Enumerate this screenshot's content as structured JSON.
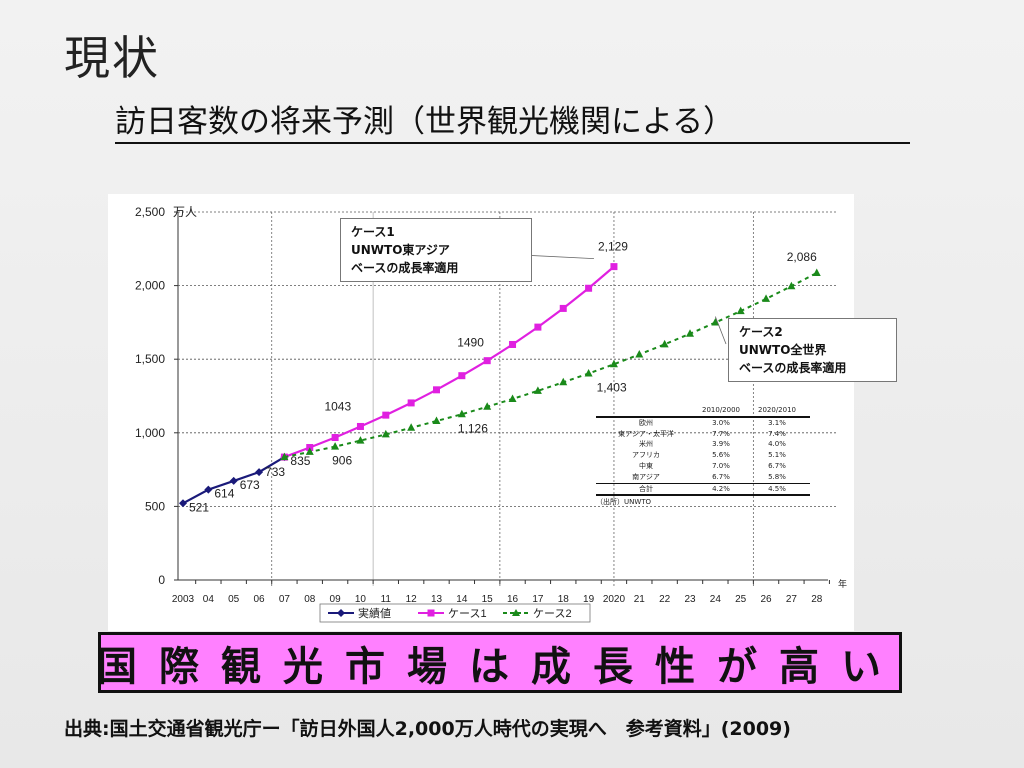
{
  "slide": {
    "heading": "現状",
    "subtitle": "訪日客数の将来予測（世界観光機関による）",
    "banner": "国際観光市場は成長性が高い",
    "source": "出典:国土交通省観光庁ー「訪日外国人2,000万人時代の実現へ　参考資料」(2009)"
  },
  "colors": {
    "actual": "#1a1a7a",
    "case1": "#e020e0",
    "case2": "#1a8a1a",
    "banner_bg": "#ff80ff"
  },
  "callouts": {
    "case1": [
      "ケース1",
      "UNWTO東アジア",
      "ベースの成長率適用"
    ],
    "case2": [
      "ケース2",
      "UNWTO全世界",
      "ベースの成長率適用"
    ]
  },
  "growth_table": {
    "header": [
      "",
      "2010/2000",
      "2020/2010"
    ],
    "rows": [
      [
        "欧州",
        "3.0%",
        "3.1%"
      ],
      [
        "東アジア・太平洋",
        "7.7%",
        "7.4%"
      ],
      [
        "米州",
        "3.9%",
        "4.0%"
      ],
      [
        "アフリカ",
        "5.6%",
        "5.1%"
      ],
      [
        "中東",
        "7.0%",
        "6.7%"
      ],
      [
        "南アジア",
        "6.7%",
        "5.8%"
      ]
    ],
    "total": [
      "合計",
      "4.2%",
      "4.5%"
    ],
    "source": "（出所）UNWTO"
  },
  "chart_data": {
    "type": "line",
    "title": "",
    "ylabel": "万人",
    "xlabel": "年",
    "ylim": [
      0,
      2500
    ],
    "yticks": [
      "0",
      "500",
      "1,000",
      "1,500",
      "2,000",
      "2,500"
    ],
    "categories": [
      "2003",
      "04",
      "05",
      "06",
      "07",
      "08",
      "09",
      "10",
      "11",
      "12",
      "13",
      "14",
      "15",
      "16",
      "17",
      "18",
      "19",
      "2020",
      "21",
      "22",
      "23",
      "24",
      "25",
      "26",
      "27",
      "28"
    ],
    "legend_position": "bottom",
    "grid": "dotted horizontal at y ticks; vertical guides at 06/07, 10/11, 15/16, 2020, 25",
    "series": [
      {
        "name": "実績値",
        "color": "#1a1a7a",
        "marker": "diamond",
        "values": [
          521,
          614,
          673,
          733,
          835,
          null,
          null,
          null,
          null,
          null,
          null,
          null,
          null,
          null,
          null,
          null,
          null,
          null,
          null,
          null,
          null,
          null,
          null,
          null,
          null,
          null
        ]
      },
      {
        "name": "ケース1",
        "color": "#e020e0",
        "marker": "square",
        "values": [
          null,
          null,
          null,
          null,
          835,
          900,
          968,
          1043,
          1120,
          1203,
          1292,
          1388,
          1490,
          1600,
          1718,
          1845,
          1982,
          2129,
          null,
          null,
          null,
          null,
          null,
          null,
          null,
          null
        ]
      },
      {
        "name": "ケース2",
        "color": "#1a8a1a",
        "marker": "triangle",
        "values": [
          null,
          null,
          null,
          null,
          835,
          870,
          906,
          947,
          989,
          1034,
          1080,
          1126,
          1177,
          1230,
          1285,
          1343,
          1403,
          1466,
          1532,
          1601,
          1673,
          1749,
          1827,
          1910,
          1996,
          2086
        ]
      }
    ],
    "data_labels": [
      {
        "series": "実績値",
        "x": "2003",
        "value": 521,
        "text": "521"
      },
      {
        "series": "実績値",
        "x": "04",
        "value": 614,
        "text": "614"
      },
      {
        "series": "実績値",
        "x": "05",
        "value": 673,
        "text": "673"
      },
      {
        "series": "実績値",
        "x": "06",
        "value": 733,
        "text": "733"
      },
      {
        "series": "実績値",
        "x": "07",
        "value": 835,
        "text": "835"
      },
      {
        "series": "ケース2",
        "x": "09",
        "value": 906,
        "text": "906"
      },
      {
        "series": "ケース1",
        "x": "10",
        "value": 1043,
        "text": "1043"
      },
      {
        "series": "ケース2",
        "x": "14",
        "value": 1126,
        "text": "1,126"
      },
      {
        "series": "ケース1",
        "x": "15",
        "value": 1490,
        "text": "1490"
      },
      {
        "series": "ケース2",
        "x": "19",
        "value": 1403,
        "text": "1,403"
      },
      {
        "series": "ケース1",
        "x": "2020",
        "value": 2129,
        "text": "2,129"
      },
      {
        "series": "ケース2",
        "x": "28",
        "value": 2086,
        "text": "2,086"
      }
    ]
  }
}
